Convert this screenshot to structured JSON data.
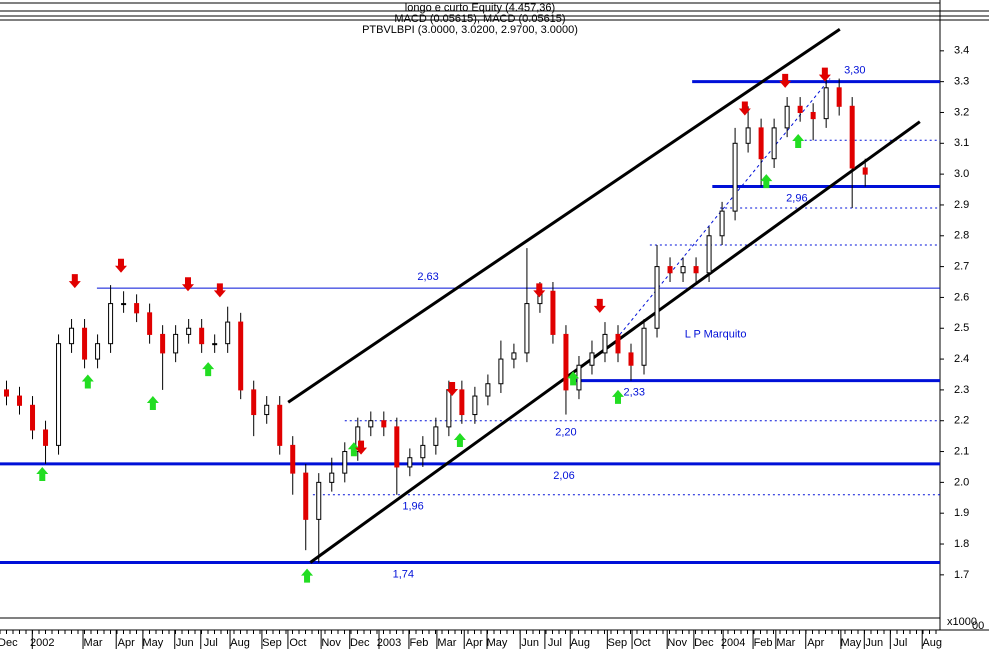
{
  "chart_data": {
    "type": "candlestick",
    "header": [
      "longo e curto Equity (4.457,36)",
      "MACD (0.05615), MACD (0.05615)",
      "PTBVLBPI (3.0000, 3.0200, 2.9700, 3.0000)"
    ],
    "annotation": {
      "text": "L P Marquito",
      "x": 110,
      "y": 2.48
    },
    "volume_unit": "x1000",
    "volume_tick": "00",
    "x": [
      1,
      3,
      5,
      7,
      9,
      11,
      13,
      15,
      17,
      19,
      21,
      23,
      25,
      27,
      29,
      31,
      33,
      35,
      37,
      39,
      41,
      43,
      45,
      47,
      49,
      51,
      53,
      55,
      57,
      59,
      61,
      63,
      65,
      67,
      69,
      71,
      73,
      75,
      77,
      79,
      81,
      83,
      85,
      87,
      89,
      91,
      93,
      95,
      97,
      99,
      101,
      103,
      105,
      107,
      109,
      111,
      113,
      115,
      117,
      119,
      121,
      123,
      125,
      127,
      129,
      131,
      133
    ],
    "open": [
      2.3,
      2.28,
      2.25,
      2.17,
      2.12,
      2.45,
      2.5,
      2.4,
      2.45,
      2.58,
      2.58,
      2.55,
      2.48,
      2.42,
      2.48,
      2.5,
      2.45,
      2.45,
      2.52,
      2.3,
      2.22,
      2.25,
      2.12,
      2.03,
      1.88,
      2.0,
      2.03,
      2.1,
      2.18,
      2.2,
      2.18,
      2.05,
      2.08,
      2.12,
      2.18,
      2.3,
      2.22,
      2.28,
      2.32,
      2.4,
      2.42,
      2.58,
      2.62,
      2.48,
      2.3,
      2.38,
      2.42,
      2.48,
      2.42,
      2.38,
      2.5,
      2.7,
      2.68,
      2.7,
      2.68,
      2.8,
      2.88,
      3.1,
      3.15,
      3.05,
      3.15,
      3.22,
      3.2,
      3.18,
      3.28,
      3.22,
      3.02
    ],
    "high": [
      2.33,
      2.31,
      2.28,
      2.2,
      2.48,
      2.53,
      2.53,
      2.48,
      2.64,
      2.62,
      2.61,
      2.58,
      2.51,
      2.51,
      2.53,
      2.53,
      2.48,
      2.57,
      2.55,
      2.33,
      2.28,
      2.28,
      2.15,
      2.06,
      2.03,
      2.08,
      2.13,
      2.21,
      2.23,
      2.23,
      2.21,
      2.11,
      2.15,
      2.21,
      2.33,
      2.33,
      2.31,
      2.35,
      2.46,
      2.45,
      2.76,
      2.65,
      2.65,
      2.51,
      2.41,
      2.46,
      2.52,
      2.51,
      2.45,
      2.53,
      2.77,
      2.73,
      2.73,
      2.73,
      2.83,
      2.91,
      3.15,
      3.22,
      3.18,
      3.18,
      3.25,
      3.25,
      3.23,
      3.31,
      3.31,
      3.25,
      3.05
    ],
    "low": [
      2.25,
      2.22,
      2.14,
      2.06,
      2.09,
      2.42,
      2.37,
      2.37,
      2.42,
      2.55,
      2.52,
      2.45,
      2.3,
      2.39,
      2.45,
      2.42,
      2.42,
      2.42,
      2.27,
      2.15,
      2.19,
      2.09,
      1.96,
      1.78,
      1.74,
      1.97,
      2.0,
      2.07,
      2.15,
      2.15,
      1.96,
      2.02,
      2.05,
      2.09,
      2.15,
      2.19,
      2.19,
      2.25,
      2.29,
      2.37,
      2.39,
      2.55,
      2.45,
      2.22,
      2.27,
      2.35,
      2.39,
      2.39,
      2.33,
      2.35,
      2.47,
      2.65,
      2.65,
      2.65,
      2.65,
      2.77,
      2.85,
      3.07,
      2.96,
      3.02,
      3.12,
      3.17,
      3.11,
      3.15,
      3.19,
      2.89,
      2.96
    ],
    "close": [
      2.28,
      2.25,
      2.17,
      2.12,
      2.45,
      2.5,
      2.4,
      2.45,
      2.58,
      2.58,
      2.55,
      2.48,
      2.42,
      2.48,
      2.5,
      2.45,
      2.45,
      2.52,
      2.3,
      2.22,
      2.25,
      2.12,
      2.03,
      1.88,
      2.0,
      2.03,
      2.1,
      2.18,
      2.2,
      2.18,
      2.05,
      2.08,
      2.12,
      2.18,
      2.3,
      2.22,
      2.28,
      2.32,
      2.4,
      2.42,
      2.58,
      2.62,
      2.48,
      2.3,
      2.38,
      2.42,
      2.48,
      2.42,
      2.38,
      2.5,
      2.7,
      2.68,
      2.7,
      2.68,
      2.8,
      2.88,
      3.1,
      3.15,
      3.05,
      3.15,
      3.22,
      3.2,
      3.18,
      3.28,
      3.22,
      3.02,
      3.0
    ],
    "up_color": "#ffffff",
    "down_color": "#e00000",
    "xlim": [
      0,
      144.5
    ],
    "ylim": [
      1.56,
      3.5
    ],
    "yticks": [
      1.7,
      1.8,
      1.9,
      {
        "value": 2.0,
        "label": "2.0"
      },
      2.1,
      2.2,
      2.3,
      2.4,
      2.5,
      2.6,
      2.7,
      2.8,
      2.9,
      {
        "value": 3.0,
        "label": "3.0"
      },
      3.1,
      3.2,
      3.3,
      3.4
    ],
    "xticks": [
      {
        "value": 1.2,
        "label": "Dec"
      },
      {
        "value": 6.5,
        "label": "2002"
      },
      {
        "value": 14.3,
        "label": "Mar"
      },
      {
        "value": 19.4,
        "label": "Apr"
      },
      {
        "value": 23.5,
        "label": "May"
      },
      {
        "value": 28.4,
        "label": "Jun"
      },
      {
        "value": 32.4,
        "label": "Jul"
      },
      {
        "value": 36.9,
        "label": "Aug"
      },
      {
        "value": 41.8,
        "label": "Sep"
      },
      {
        "value": 45.8,
        "label": "Oct"
      },
      {
        "value": 50.9,
        "label": "Nov"
      },
      {
        "value": 55.3,
        "label": "Dec"
      },
      {
        "value": 59.8,
        "label": "2003"
      },
      {
        "value": 64.4,
        "label": "Feb"
      },
      {
        "value": 68.7,
        "label": "Mar"
      },
      {
        "value": 72.9,
        "label": "Apr"
      },
      {
        "value": 76.4,
        "label": "May"
      },
      {
        "value": 81.5,
        "label": "Jun"
      },
      {
        "value": 85.3,
        "label": "Jul"
      },
      {
        "value": 89.2,
        "label": "Aug"
      },
      {
        "value": 94.9,
        "label": "Sep"
      },
      {
        "value": 98.7,
        "label": "Oct"
      },
      {
        "value": 104.1,
        "label": "Nov"
      },
      {
        "value": 108.2,
        "label": "Dec"
      },
      {
        "value": 112.7,
        "label": "2004"
      },
      {
        "value": 117.3,
        "label": "Feb"
      },
      {
        "value": 120.8,
        "label": "Mar"
      },
      {
        "value": 125.4,
        "label": "Apr"
      },
      {
        "value": 130.8,
        "label": "May"
      },
      {
        "value": 134.4,
        "label": "Jun"
      },
      {
        "value": 138.4,
        "label": "Jul"
      },
      {
        "value": 143.3,
        "label": "Aug"
      }
    ],
    "levels": [
      {
        "value": 3.3,
        "label": "3,30",
        "from": 106.4,
        "style": "thick",
        "label_at": 131.4,
        "label_side": "above"
      },
      {
        "value": 2.96,
        "label": "2,96",
        "from": 109.5,
        "style": "thick",
        "label_at": 122.5,
        "label_side": "below"
      },
      {
        "value": 2.63,
        "label": "2,63",
        "from": 14.9,
        "style": "thin",
        "label_at": 65.8,
        "label_side": "above"
      },
      {
        "value": 2.33,
        "label": "2,33",
        "from": 88.4,
        "style": "thick",
        "label_at": 97.5,
        "label_side": "below"
      },
      {
        "value": 2.2,
        "label": "2,20",
        "from": 53.0,
        "style": "dotted",
        "label_at": 87.0,
        "label_side": "below"
      },
      {
        "value": 2.06,
        "label": "2,06",
        "from": 0,
        "style": "thick",
        "label_at": 86.7,
        "label_side": "below"
      },
      {
        "value": 1.96,
        "label": "1,96",
        "from": 48.1,
        "style": "dotted",
        "label_at": 63.5,
        "label_side": "below"
      },
      {
        "value": 1.74,
        "label": "1,74",
        "from": 0,
        "style": "thick",
        "label_at": 62.0,
        "label_side": "below"
      },
      {
        "value": 3.11,
        "from": 123.7,
        "style": "dotted"
      },
      {
        "value": 2.89,
        "from": 110.7,
        "style": "dotted"
      },
      {
        "value": 2.77,
        "from": 99.9,
        "style": "dotted"
      }
    ],
    "trendlines": [
      {
        "x": [
          44.3,
          129.1
        ],
        "y": [
          2.26,
          3.47
        ],
        "style": "channel"
      },
      {
        "x": [
          47.7,
          141.4
        ],
        "y": [
          1.74,
          3.17
        ],
        "style": "channel"
      },
      {
        "x": [
          95.3,
          127.6
        ],
        "y": [
          2.48,
          3.31
        ],
        "style": "dashed"
      }
    ],
    "buy_signals": {
      "x": [
        6.5,
        13.5,
        23.5,
        32.0,
        47.2,
        54.4,
        70.7,
        88.1,
        95.0,
        117.8,
        122.7
      ],
      "y": [
        2.05,
        2.35,
        2.28,
        2.39,
        1.72,
        2.13,
        2.16,
        2.36,
        2.3,
        3.0,
        3.13
      ],
      "color": "#22dd22"
    },
    "sell_signals": {
      "x": [
        11.5,
        18.6,
        28.9,
        33.8,
        55.5,
        69.5,
        82.9,
        92.2,
        114.5,
        120.7,
        126.8
      ],
      "y": [
        2.63,
        2.68,
        2.62,
        2.6,
        2.09,
        2.28,
        2.6,
        2.55,
        3.19,
        3.28,
        3.3
      ],
      "color": "#e00000"
    }
  }
}
